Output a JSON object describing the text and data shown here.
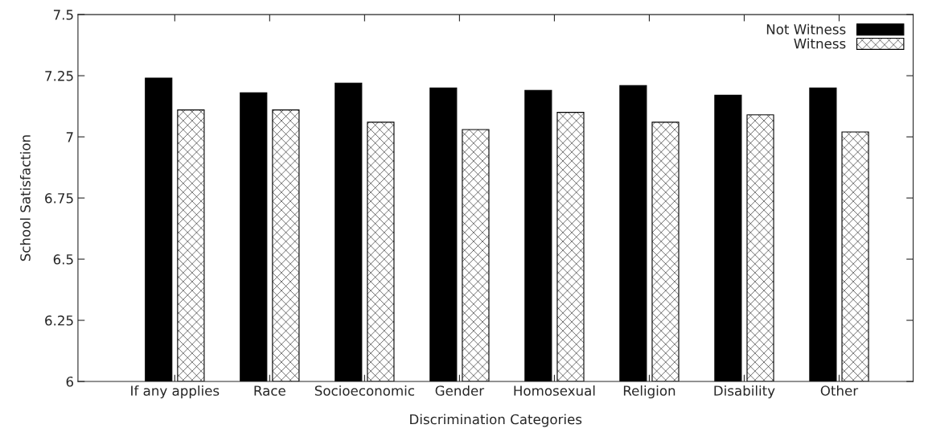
{
  "chart_data": {
    "type": "bar",
    "xlabel": "Discrimination Categories",
    "ylabel": "School Satisfaction",
    "categories": [
      "If any applies",
      "Race",
      "Socioeconomic",
      "Gender",
      "Homosexual",
      "Religion",
      "Disability",
      "Other"
    ],
    "series": [
      {
        "name": "Not Witness",
        "color": "#000000",
        "values": [
          7.24,
          7.18,
          7.22,
          7.2,
          7.19,
          7.21,
          7.17,
          7.2
        ]
      },
      {
        "name": "Witness",
        "color": "#ffffff",
        "values": [
          7.11,
          7.11,
          7.06,
          7.03,
          7.1,
          7.06,
          7.09,
          7.02
        ]
      }
    ],
    "ylim": [
      6,
      7.5
    ],
    "yticks": [
      6,
      6.25,
      6.5,
      6.75,
      7,
      7.25,
      7.5
    ],
    "grid": false,
    "legend": "top right"
  }
}
